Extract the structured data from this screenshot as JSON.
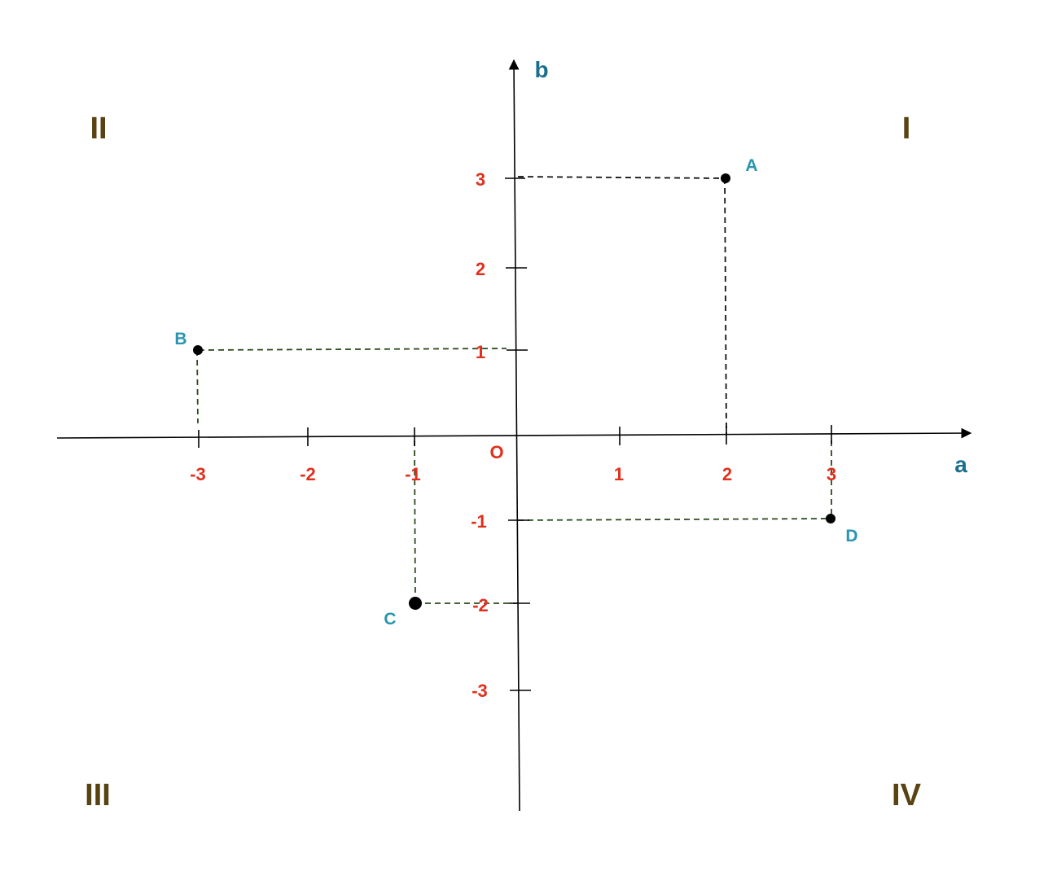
{
  "axes": {
    "x_name": "a",
    "y_name": "b",
    "origin_label": "O"
  },
  "x_ticks": [
    "-3",
    "-2",
    "-1",
    "1",
    "2",
    "3"
  ],
  "y_ticks": [
    "3",
    "2",
    "1",
    "-1",
    "-2",
    "-3"
  ],
  "quadrants": {
    "q1": "I",
    "q2": "II",
    "q3": "III",
    "q4": "IV"
  },
  "points": [
    {
      "label": "A",
      "x": 2,
      "y": 3
    },
    {
      "label": "B",
      "x": -3,
      "y": 1
    },
    {
      "label": "C",
      "x": -1,
      "y": -2
    },
    {
      "label": "D",
      "x": 3,
      "y": -1
    }
  ],
  "colors": {
    "axis": "#000000",
    "tick_label": "#e0301e",
    "axis_name": "#1a6f8c",
    "point_label": "#2a95b0",
    "quadrant": "#5a4312",
    "guide_dark": "#111111",
    "guide_green": "#2c4a1e"
  }
}
